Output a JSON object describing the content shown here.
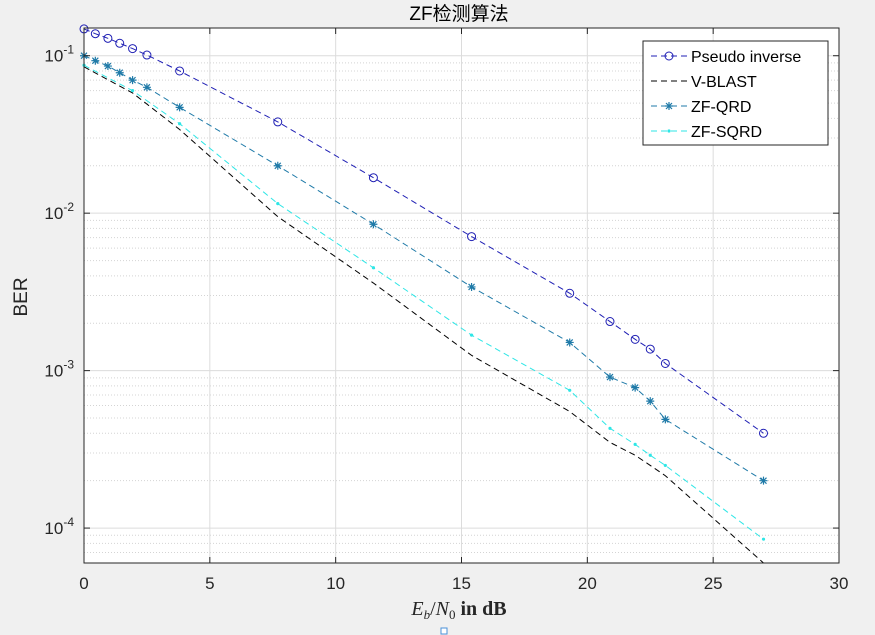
{
  "chart_data": {
    "type": "line",
    "title": "ZF检测算法",
    "xlabel": {
      "var1": "E",
      "sub1": "b",
      "sep": "/",
      "var2": "N",
      "sub2": "0",
      "rest": " in dB"
    },
    "ylabel": "BER",
    "xlim": [
      0,
      30
    ],
    "ylim": [
      6e-05,
      0.15
    ],
    "yscale": "log",
    "grid": true,
    "minor_grid": true,
    "legend_position": "top-right",
    "x_ticks": [
      0,
      5,
      10,
      15,
      20,
      25,
      30
    ],
    "y_ticks": [
      {
        "value": 0.0001,
        "base": "10",
        "exp": "-4"
      },
      {
        "value": 0.001,
        "base": "10",
        "exp": "-3"
      },
      {
        "value": 0.01,
        "base": "10",
        "exp": "-2"
      },
      {
        "value": 0.1,
        "base": "10",
        "exp": "-1"
      }
    ],
    "series": [
      {
        "name": "Pseudo inverse",
        "color": "#1f1fb4",
        "marker": "circle",
        "dashed": true,
        "x": [
          0,
          0.45,
          0.95,
          1.42,
          1.93,
          2.5,
          3.8,
          7.7,
          11.5,
          15.4,
          19.3,
          20.9,
          21.9,
          22.5,
          23.1,
          27
        ],
        "y": [
          0.148,
          0.138,
          0.129,
          0.12,
          0.111,
          0.101,
          0.08,
          0.038,
          0.0168,
          0.0071,
          0.0031,
          0.00205,
          0.00158,
          0.00137,
          0.00111,
          0.0004
        ]
      },
      {
        "name": "V-BLAST",
        "color": "#000000",
        "marker": "none",
        "dashed": true,
        "x": [
          0,
          1.93,
          3.8,
          7.7,
          11.5,
          15.4,
          19.3,
          20.9,
          21.9,
          22.5,
          23.1,
          27
        ],
        "y": [
          0.085,
          0.058,
          0.034,
          0.0095,
          0.0036,
          0.00125,
          0.00055,
          0.00035,
          0.00029,
          0.00025,
          0.000215,
          6e-05
        ]
      },
      {
        "name": "ZF-QRD",
        "color": "#1f7aa8",
        "marker": "star",
        "dashed": true,
        "x": [
          0,
          0.45,
          0.95,
          1.42,
          1.93,
          2.5,
          3.8,
          7.7,
          11.5,
          15.4,
          19.3,
          20.9,
          21.9,
          22.5,
          23.1,
          27
        ],
        "y": [
          0.1,
          0.093,
          0.086,
          0.078,
          0.07,
          0.063,
          0.047,
          0.02,
          0.0085,
          0.0034,
          0.00151,
          0.00091,
          0.00078,
          0.00064,
          0.00049,
          0.0002
        ]
      },
      {
        "name": "ZF-SQRD",
        "color": "#2ee6e6",
        "marker": "dot",
        "dashed": true,
        "x": [
          0,
          1.93,
          3.8,
          7.7,
          11.5,
          15.4,
          19.3,
          20.9,
          21.9,
          22.5,
          23.1,
          27
        ],
        "y": [
          0.087,
          0.06,
          0.037,
          0.0115,
          0.0045,
          0.00168,
          0.00075,
          0.00043,
          0.00034,
          0.00029,
          0.00025,
          8.5e-05
        ]
      }
    ]
  }
}
